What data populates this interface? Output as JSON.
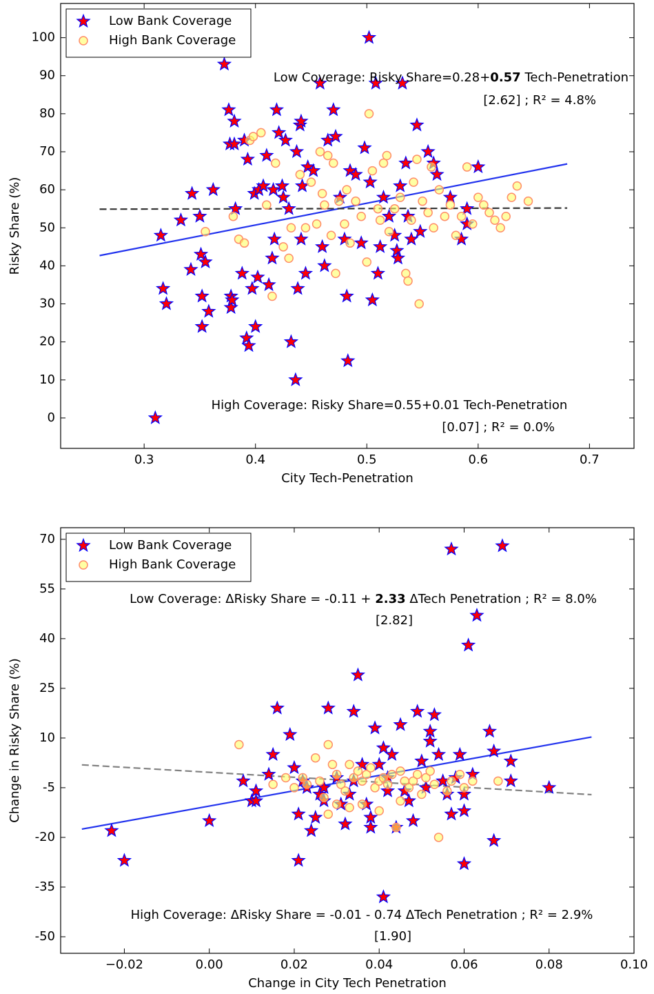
{
  "chart_data": [
    {
      "type": "scatter",
      "xlabel": "City Tech-Penetration",
      "ylabel": "Risky Share (%)",
      "xlim": [
        0.225,
        0.74
      ],
      "ylim": [
        -8,
        109
      ],
      "xticks": [
        0.3,
        0.4,
        0.5,
        0.6,
        0.7
      ],
      "yticks": [
        0,
        10,
        20,
        30,
        40,
        50,
        60,
        70,
        80,
        90,
        100
      ],
      "legend": "upper left",
      "series": [
        {
          "name": "Low Bank Coverage",
          "marker": "star",
          "color": "#ff0000",
          "edgecolor": "#0000ff",
          "x": [
            0.31,
            0.315,
            0.317,
            0.32,
            0.333,
            0.342,
            0.343,
            0.35,
            0.351,
            0.352,
            0.352,
            0.355,
            0.358,
            0.362,
            0.372,
            0.376,
            0.377,
            0.378,
            0.378,
            0.379,
            0.381,
            0.381,
            0.382,
            0.388,
            0.39,
            0.392,
            0.393,
            0.394,
            0.397,
            0.399,
            0.4,
            0.402,
            0.403,
            0.407,
            0.41,
            0.412,
            0.415,
            0.416,
            0.417,
            0.419,
            0.421,
            0.424,
            0.425,
            0.427,
            0.43,
            0.432,
            0.436,
            0.437,
            0.438,
            0.44,
            0.441,
            0.441,
            0.442,
            0.445,
            0.447,
            0.452,
            0.458,
            0.46,
            0.462,
            0.465,
            0.47,
            0.472,
            0.476,
            0.48,
            0.482,
            0.483,
            0.485,
            0.49,
            0.495,
            0.498,
            0.502,
            0.503,
            0.505,
            0.508,
            0.51,
            0.512,
            0.515,
            0.52,
            0.525,
            0.527,
            0.528,
            0.53,
            0.532,
            0.535,
            0.537,
            0.54,
            0.545,
            0.548,
            0.555,
            0.56,
            0.563,
            0.575,
            0.585,
            0.59,
            0.59,
            0.6
          ],
          "values": [
            0,
            48,
            34,
            30,
            52,
            39,
            59,
            53,
            43,
            32,
            24,
            41,
            28,
            60,
            93,
            81,
            72,
            32,
            29,
            31,
            72,
            78,
            55,
            38,
            73,
            21,
            68,
            19,
            34,
            59,
            24,
            37,
            60,
            61,
            69,
            35,
            42,
            60,
            47,
            81,
            75,
            61,
            58,
            73,
            55,
            20,
            10,
            70,
            34,
            77,
            78,
            47,
            61,
            38,
            66,
            65,
            88,
            45,
            40,
            73,
            81,
            74,
            58,
            47,
            32,
            15,
            65,
            64,
            46,
            71,
            100,
            62,
            31,
            88,
            38,
            45,
            58,
            53,
            48,
            44,
            42,
            61,
            88,
            67,
            53,
            47,
            77,
            49,
            70,
            67,
            64,
            58,
            47,
            55,
            51,
            66
          ]
        },
        {
          "name": "High Bank Coverage",
          "marker": "circle",
          "color": "#ffff66",
          "edgecolor": "#ff8c69",
          "x": [
            0.355,
            0.38,
            0.385,
            0.39,
            0.395,
            0.398,
            0.405,
            0.41,
            0.415,
            0.418,
            0.425,
            0.43,
            0.432,
            0.44,
            0.445,
            0.45,
            0.455,
            0.458,
            0.46,
            0.462,
            0.465,
            0.468,
            0.47,
            0.472,
            0.475,
            0.48,
            0.482,
            0.485,
            0.49,
            0.495,
            0.5,
            0.502,
            0.505,
            0.51,
            0.512,
            0.515,
            0.518,
            0.52,
            0.525,
            0.53,
            0.535,
            0.537,
            0.54,
            0.542,
            0.545,
            0.547,
            0.55,
            0.555,
            0.558,
            0.56,
            0.565,
            0.57,
            0.575,
            0.58,
            0.585,
            0.59,
            0.595,
            0.6,
            0.605,
            0.61,
            0.615,
            0.62,
            0.625,
            0.63,
            0.635,
            0.645
          ],
          "values": [
            49,
            53,
            47,
            46,
            73,
            74,
            75,
            56,
            32,
            67,
            45,
            42,
            50,
            64,
            50,
            62,
            51,
            70,
            59,
            56,
            69,
            48,
            67,
            38,
            57,
            51,
            60,
            46,
            57,
            53,
            41,
            80,
            65,
            55,
            52,
            67,
            69,
            49,
            55,
            58,
            38,
            36,
            52,
            62,
            68,
            30,
            57,
            54,
            66,
            50,
            60,
            53,
            56,
            48,
            53,
            66,
            51,
            58,
            56,
            54,
            52,
            50,
            53,
            58,
            61,
            57
          ]
        }
      ],
      "fit_lines": [
        {
          "color": "#2233ee",
          "dash": "solid",
          "x": [
            0.26,
            0.68
          ],
          "values": [
            42.7,
            66.8
          ]
        },
        {
          "color": "#333333",
          "dash": "dashed",
          "x": [
            0.26,
            0.68
          ],
          "values": [
            54.9,
            55.2
          ]
        }
      ],
      "annotations": [
        {
          "prefix": "Low Coverage: Risky Share=0.28+",
          "bold": "0.57",
          "suffix": " Tech-Penetration",
          "note": "[2.62] ;  R² = 4.8%"
        },
        {
          "prefix": "High Coverage: Risky Share=0.55+0.01 Tech-Penetration",
          "note": "[0.07] ; R² = 0.0%"
        }
      ]
    },
    {
      "type": "scatter",
      "xlabel": "Change in City Tech Penetration",
      "ylabel": "Change in Risky Share (%)",
      "xlim": [
        -0.035,
        0.1
      ],
      "ylim": [
        -55,
        73.5
      ],
      "xticks": [
        {
          "value": -0.02,
          "label": "−0.02"
        },
        {
          "value": 0,
          "label": "0.00"
        },
        {
          "value": 0.02,
          "label": "0.02"
        },
        {
          "value": 0.04,
          "label": "0.04"
        },
        {
          "value": 0.06,
          "label": "0.06"
        },
        {
          "value": 0.08,
          "label": "0.08"
        },
        {
          "value": 0.1,
          "label": "0.10"
        }
      ],
      "yticks": [
        -50,
        -35,
        -20,
        -5,
        10,
        25,
        40,
        55,
        70
      ],
      "legend": "upper left",
      "series": [
        {
          "name": "Low Bank Coverage",
          "marker": "star",
          "color": "#ff0000",
          "edgecolor": "#0000ff",
          "x": [
            -0.023,
            -0.02,
            0,
            0.008,
            0.01,
            0.011,
            0.011,
            0.014,
            0.015,
            0.016,
            0.019,
            0.02,
            0.021,
            0.021,
            0.022,
            0.023,
            0.024,
            0.025,
            0.026,
            0.027,
            0.027,
            0.028,
            0.03,
            0.031,
            0.032,
            0.033,
            0.034,
            0.034,
            0.035,
            0.036,
            0.037,
            0.038,
            0.038,
            0.039,
            0.04,
            0.041,
            0.041,
            0.042,
            0.042,
            0.043,
            0.044,
            0.045,
            0.046,
            0.047,
            0.048,
            0.049,
            0.05,
            0.051,
            0.052,
            0.052,
            0.053,
            0.054,
            0.055,
            0.056,
            0.057,
            0.057,
            0.058,
            0.059,
            0.06,
            0.06,
            0.061,
            0.06,
            0.062,
            0.063,
            0.066,
            0.067,
            0.067,
            0.069,
            0.071,
            0.071,
            0.08
          ],
          "values": [
            -18,
            -27,
            -15,
            -3,
            -9,
            -6,
            -9,
            -1,
            5,
            19,
            11,
            1,
            -27,
            -13,
            -3,
            -5,
            -18,
            -14,
            -7,
            -9,
            -5,
            19,
            -2,
            -10,
            -16,
            -7,
            -3,
            18,
            29,
            2,
            -10,
            -14,
            -17,
            13,
            2,
            -38,
            7,
            -2,
            -6,
            5,
            -17,
            14,
            -6,
            -9,
            -15,
            18,
            3,
            -5,
            12,
            9,
            17,
            5,
            -3,
            -7,
            67,
            -13,
            -2,
            5,
            -7,
            -28,
            38,
            -12,
            -1,
            47,
            12,
            -21,
            6,
            68,
            3,
            -3,
            -5
          ]
        },
        {
          "name": "High Bank Coverage",
          "marker": "circle",
          "color": "#ffff66",
          "edgecolor": "#ff8c69",
          "x": [
            0.007,
            0.015,
            0.018,
            0.02,
            0.022,
            0.023,
            0.025,
            0.026,
            0.027,
            0.028,
            0.029,
            0.03,
            0.031,
            0.032,
            0.033,
            0.034,
            0.035,
            0.036,
            0.037,
            0.038,
            0.039,
            0.04,
            0.041,
            0.042,
            0.043,
            0.044,
            0.045,
            0.046,
            0.047,
            0.048,
            0.049,
            0.05,
            0.051,
            0.052,
            0.053,
            0.054,
            0.056,
            0.057,
            0.059,
            0.06,
            0.062,
            0.068,
            0.03,
            0.033,
            0.036,
            0.04,
            0.028,
            0.045
          ],
          "values": [
            8,
            -4,
            -2,
            -5,
            -2,
            -4,
            4,
            -3,
            -8,
            8,
            2,
            -1,
            -4,
            -6,
            2,
            -2,
            0,
            -3,
            -1,
            1,
            -5,
            -3,
            -2,
            -4,
            -1,
            -17,
            0,
            -3,
            -5,
            -3,
            -1,
            -7,
            -2,
            0,
            -4,
            -20,
            -6,
            -3,
            -1,
            -5,
            -3,
            -3,
            -10,
            -11,
            -10,
            -12,
            -13,
            -9
          ]
        }
      ],
      "fit_lines": [
        {
          "color": "#2233ee",
          "dash": "solid",
          "x": [
            -0.03,
            0.09
          ],
          "values": [
            -17.5,
            10.3
          ]
        },
        {
          "color": "#808080",
          "dash": "dashed",
          "x": [
            -0.03,
            0.09
          ],
          "values": [
            1.9,
            -7.1
          ]
        }
      ],
      "annotations": [
        {
          "prefix": "Low Coverage: ΔRisky Share = -0.11 + ",
          "bold": "2.33",
          "suffix": " ΔTech Penetration ; R² = 8.0%",
          "note": "[2.82]"
        },
        {
          "prefix": "High Coverage: ΔRisky Share = -0.01 - 0.74 ΔTech Penetration ; R² = 2.9%",
          "note": "[1.90]"
        }
      ]
    }
  ]
}
